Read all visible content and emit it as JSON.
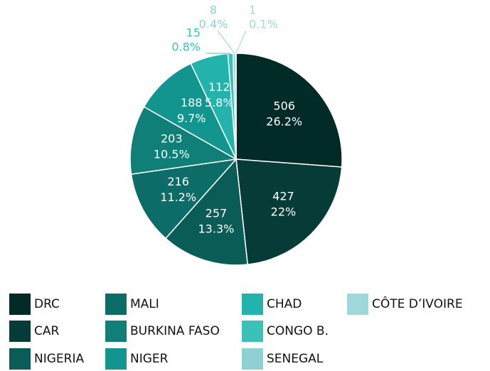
{
  "chart_data": {
    "type": "pie",
    "categories": [
      "DRC",
      "CAR",
      "NIGERIA",
      "MALI",
      "BURKINA FASO",
      "NIGER",
      "CHAD",
      "CONGO B.",
      "SENEGAL",
      "CÔTE D’IVOIRE"
    ],
    "values": [
      506,
      427,
      257,
      216,
      203,
      188,
      112,
      15,
      8,
      1
    ],
    "percent_labels": [
      "26.2%",
      "22%",
      "13.3%",
      "11.2%",
      "10.5%",
      "9.7%",
      "5.8%",
      "0.8%",
      "0.4%",
      "0.1%"
    ],
    "colors": [
      "#022b27",
      "#063b37",
      "#0a5c57",
      "#0c6d68",
      "#0f7f78",
      "#13958f",
      "#22b3ad",
      "#3cc0ba",
      "#8fd0d3",
      "#9fd8db"
    ],
    "legend": "bottom"
  }
}
